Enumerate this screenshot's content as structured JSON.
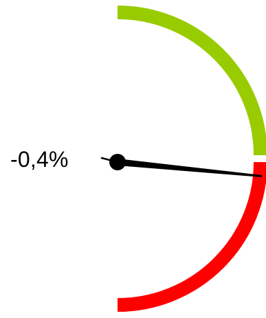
{
  "gauge": {
    "value_label": "-0,4%",
    "value": -0.4,
    "positive_color": "#99CC00",
    "negative_color": "#FF0000",
    "needle_color": "#000000",
    "hub_color": "#000000"
  }
}
